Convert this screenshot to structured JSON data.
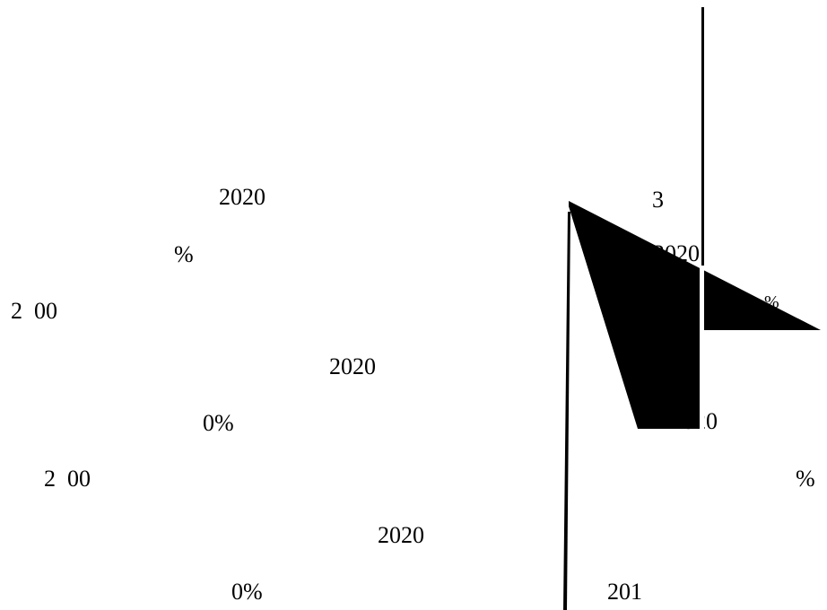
{
  "fragments": [
    "2020",
    "%",
    "2  00",
    "2020",
    "0%",
    "2  00",
    "2020",
    "0%",
    "3",
    "2020",
    "%",
    "2020",
    "%",
    "201"
  ],
  "colors": {
    "background": "#ffffff",
    "ink": "#000000"
  }
}
